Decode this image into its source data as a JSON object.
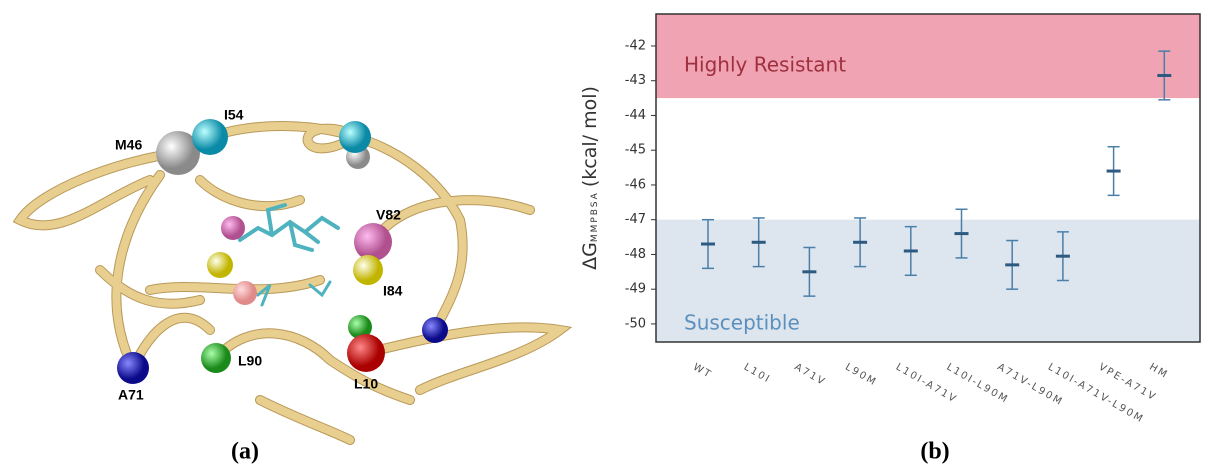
{
  "panel_a": {
    "labels": [
      "I54",
      "M46",
      "V82",
      "I84",
      "L90",
      "A71",
      "L10"
    ],
    "caption": "(a)"
  },
  "chart_data": {
    "type": "errorbar",
    "caption": "(b)",
    "y_label": {
      "symbol": "ΔG",
      "subscript": "MMPBSA",
      "unit": "(kcal/ mol)"
    },
    "categories": [
      "WT",
      "L10I",
      "A71V",
      "L90M",
      "L10I-A71V",
      "L10I-L90M",
      "A71V-L90M",
      "L10I-A71V-L90M",
      "VPE-A71V",
      "HM"
    ],
    "series": [
      {
        "color": "#4a7fa8",
        "values": [
          -47.7,
          -47.65,
          -48.5,
          -47.65,
          -47.9,
          -47.4,
          -48.3,
          -48.05,
          -45.6,
          -42.85
        ],
        "errors": [
          0.7,
          0.7,
          0.7,
          0.7,
          0.7,
          0.7,
          0.7,
          0.7,
          0.7,
          0.7
        ]
      }
    ],
    "bands": [
      {
        "label": "Highly Resistant",
        "range": [
          -43.5,
          -41.08
        ],
        "color": "#f0a3b2",
        "label_color": "#a0303f"
      },
      {
        "label": "Susceptible",
        "range": [
          -50.52,
          -47
        ],
        "color": "#dde5ef",
        "label_color": "#5b90bc"
      }
    ],
    "ylim": [
      -50.52,
      -41.08
    ],
    "yticks": [
      -42,
      -43,
      -44,
      -45,
      -46,
      -47,
      -48,
      -49,
      -50
    ]
  }
}
